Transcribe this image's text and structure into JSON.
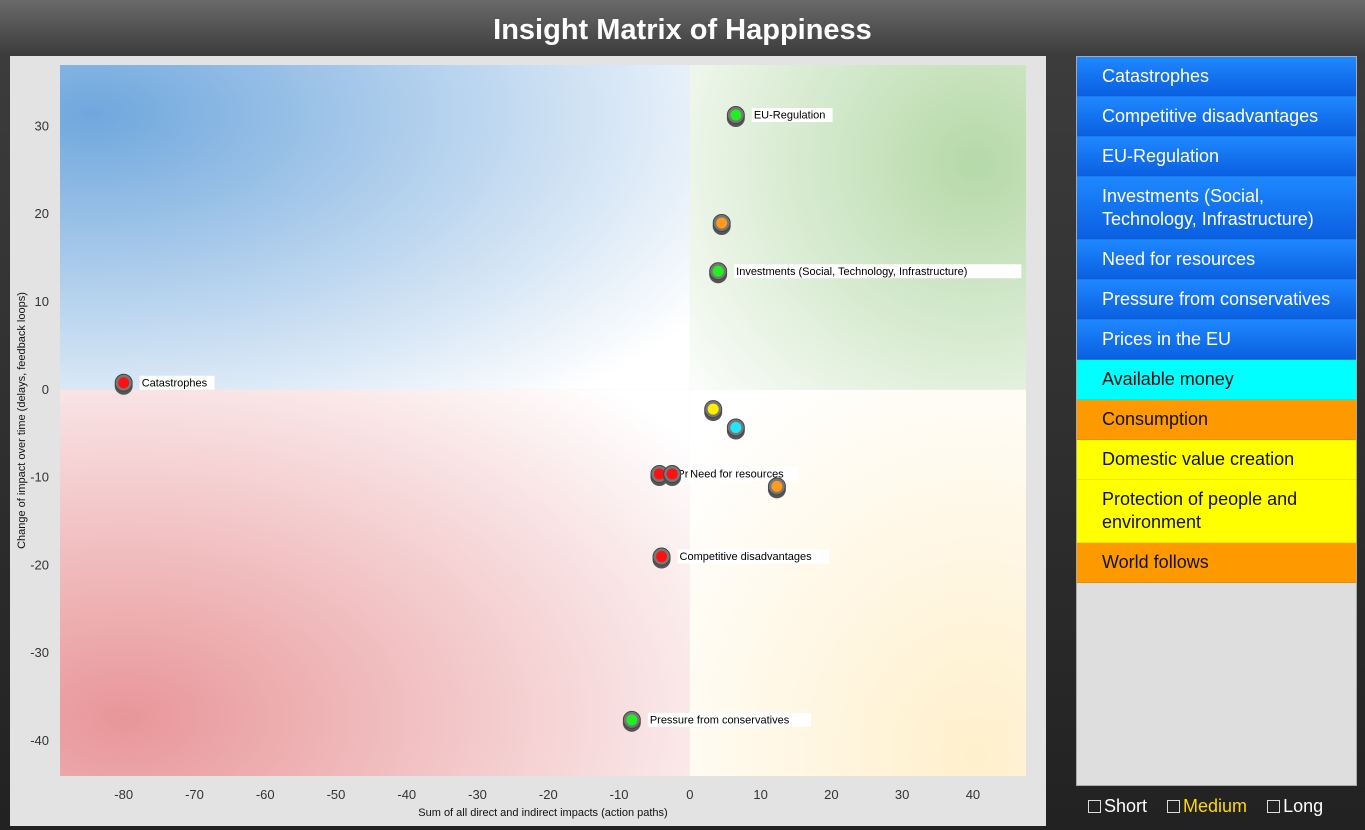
{
  "title": "Insight Matrix of Happiness",
  "chart_data": {
    "type": "scatter",
    "xlabel": "Sum of all direct and indirect impacts (action paths)",
    "ylabel": "Change of impact over time (delays, feedback loops)",
    "xlim": [
      -89,
      47.5
    ],
    "ylim": [
      -44,
      37
    ],
    "xticks": [
      -80,
      -70,
      -60,
      -50,
      -40,
      -30,
      -20,
      -10,
      0,
      10,
      20,
      30,
      40
    ],
    "yticks": [
      30,
      20,
      10,
      0,
      -10,
      -20,
      -30,
      -40
    ],
    "quadrant_colors": {
      "top_left": "#6fa7dd",
      "top_right": "#b5d9a8",
      "bottom_left": "#e89699",
      "bottom_right": "#fff0cc"
    },
    "points": [
      {
        "x": 6.5,
        "y": 31.3,
        "color": "#22ee22",
        "label": "EU-Regulation"
      },
      {
        "x": 4.5,
        "y": 19.0,
        "color": "#ff9a1a",
        "label": ""
      },
      {
        "x": 4.0,
        "y": 13.5,
        "color": "#22ee22",
        "label": "Investments (Social, Technology, Infrastructure)"
      },
      {
        "x": -80.0,
        "y": 0.8,
        "color": "#ff1010",
        "label": "Catastrophes"
      },
      {
        "x": 3.3,
        "y": -2.2,
        "color": "#ffee00",
        "label": ""
      },
      {
        "x": 6.5,
        "y": -4.3,
        "color": "#22e6ff",
        "label": ""
      },
      {
        "x": -4.3,
        "y": -9.6,
        "color": "#ff1010",
        "label": "Pr"
      },
      {
        "x": -2.5,
        "y": -9.6,
        "color": "#ff1010",
        "label": "Need for resources"
      },
      {
        "x": 12.3,
        "y": -11.0,
        "color": "#ff9a1a",
        "label": ""
      },
      {
        "x": -4.0,
        "y": -19.0,
        "color": "#ff1010",
        "label": "Competitive disadvantages"
      },
      {
        "x": -8.2,
        "y": -37.6,
        "color": "#22ee22",
        "label": "Pressure from conservatives"
      }
    ]
  },
  "side_list": [
    {
      "label": "Catastrophes",
      "style": "blue"
    },
    {
      "label": "Competitive disadvantages",
      "style": "blue"
    },
    {
      "label": "EU-Regulation",
      "style": "blue"
    },
    {
      "label": "Investments (Social, Technology, Infrastructure)",
      "style": "blue"
    },
    {
      "label": "Need for resources",
      "style": "blue"
    },
    {
      "label": "Pressure from conservatives",
      "style": "blue"
    },
    {
      "label": "Prices in the EU",
      "style": "blue"
    },
    {
      "label": "Available money",
      "style": "cyan"
    },
    {
      "label": "Consumption",
      "style": "orange"
    },
    {
      "label": "Domestic value creation",
      "style": "yellow"
    },
    {
      "label": "Protection of people and environment",
      "style": "yellow"
    },
    {
      "label": "World follows",
      "style": "orange"
    }
  ],
  "toggles": {
    "short": "Short",
    "medium": "Medium",
    "long": "Long",
    "active": "medium",
    "active_color": "#ffd800"
  }
}
